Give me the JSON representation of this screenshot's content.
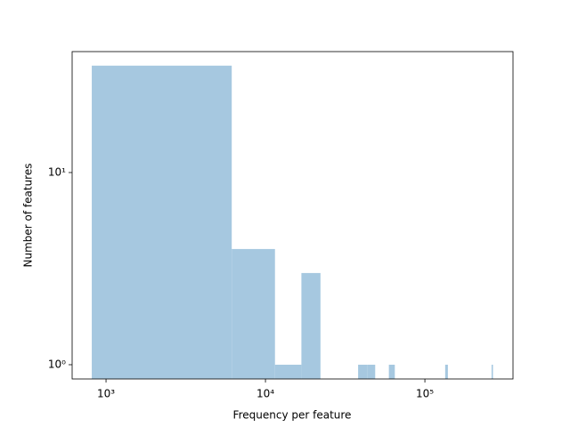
{
  "chart_data": {
    "type": "histogram",
    "x_label": "Frequency per feature",
    "y_label": "Number of features",
    "bins": [
      814,
      6144,
      11474,
      16804,
      22134,
      27464,
      32794,
      38124,
      43454,
      48784,
      54114,
      59444,
      64774,
      70104,
      75434,
      80764,
      86094,
      91424,
      96754,
      102084,
      107414,
      112744,
      118074,
      123404,
      128734,
      134064,
      139394,
      144724,
      150054,
      155384,
      160714,
      166044,
      171374,
      176704,
      182034,
      187364,
      192694,
      198024,
      203354,
      208684,
      214014,
      219344,
      224674,
      230004,
      235334,
      240664,
      245994,
      251324,
      256654,
      261984,
      267314
    ],
    "values": [
      36,
      4,
      1,
      3,
      0,
      0,
      0,
      1,
      1,
      0,
      0,
      1,
      0,
      0,
      0,
      0,
      0,
      0,
      0,
      0,
      0,
      0,
      0,
      0,
      0,
      1,
      0,
      0,
      0,
      0,
      0,
      0,
      0,
      0,
      0,
      0,
      0,
      0,
      0,
      0,
      0,
      0,
      0,
      0,
      0,
      0,
      0,
      0,
      0,
      1
    ],
    "color": "#a6c8e0",
    "x_log": true,
    "y_log": true,
    "xlim": [
      613,
      357000
    ],
    "ylim": [
      0.843,
      42.6
    ],
    "xticks": [
      {
        "value": 1000,
        "label": "10³"
      },
      {
        "value": 10000,
        "label": "10⁴"
      },
      {
        "value": 100000,
        "label": "10⁵"
      }
    ],
    "yticks": [
      {
        "value": 1,
        "label": "10⁰"
      },
      {
        "value": 10,
        "label": "10¹"
      }
    ]
  }
}
